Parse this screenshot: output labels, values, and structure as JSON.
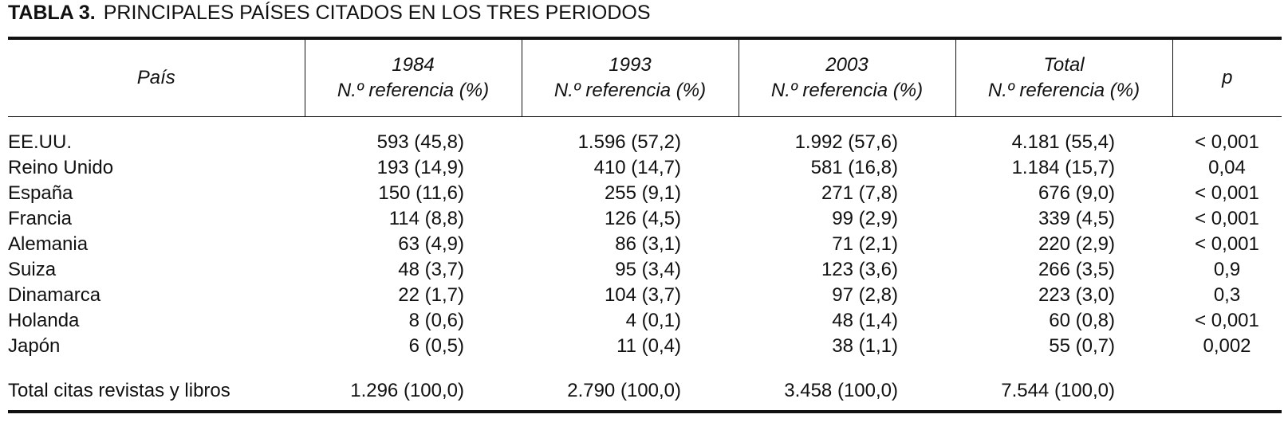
{
  "title": {
    "label": "TABLA 3.",
    "text": "PRINCIPALES PAÍSES CITADOS EN LOS TRES PERIODOS"
  },
  "table": {
    "header": [
      [
        "País"
      ],
      [
        "1984",
        "N.º referencia (%)"
      ],
      [
        "1993",
        "N.º referencia (%)"
      ],
      [
        "2003",
        "N.º referencia (%)"
      ],
      [
        "Total",
        "N.º referencia (%)"
      ],
      [
        "p"
      ]
    ],
    "rows": [
      [
        "EE.UU.",
        "593 (45,8)",
        "1.596 (57,2)",
        "1.992 (57,6)",
        "4.181 (55,4)",
        "< 0,001"
      ],
      [
        "Reino Unido",
        "193 (14,9)",
        "410 (14,7)",
        "581 (16,8)",
        "1.184 (15,7)",
        "0,04"
      ],
      [
        "España",
        "150 (11,6)",
        "255 (9,1)",
        "271 (7,8)",
        "676 (9,0)",
        "< 0,001"
      ],
      [
        "Francia",
        "114 (8,8)",
        "126 (4,5)",
        "99 (2,9)",
        "339 (4,5)",
        "< 0,001"
      ],
      [
        "Alemania",
        "63 (4,9)",
        "86 (3,1)",
        "71 (2,1)",
        "220 (2,9)",
        "< 0,001"
      ],
      [
        "Suiza",
        "48 (3,7)",
        "95 (3,4)",
        "123 (3,6)",
        "266 (3,5)",
        "0,9"
      ],
      [
        "Dinamarca",
        "22 (1,7)",
        "104 (3,7)",
        "97 (2,8)",
        "223 (3,0)",
        "0,3"
      ],
      [
        "Holanda",
        "8 (0,6)",
        "4 (0,1)",
        "48 (1,4)",
        "60 (0,8)",
        "< 0,001"
      ],
      [
        "Japón",
        "6 (0,5)",
        "11 (0,4)",
        "38 (1,1)",
        "55 (0,7)",
        "0,002"
      ]
    ],
    "total": [
      "Total citas revistas y libros",
      "1.296 (100,0)",
      "2.790 (100,0)",
      "3.458 (100,0)",
      "7.544 (100,0)"
    ]
  }
}
